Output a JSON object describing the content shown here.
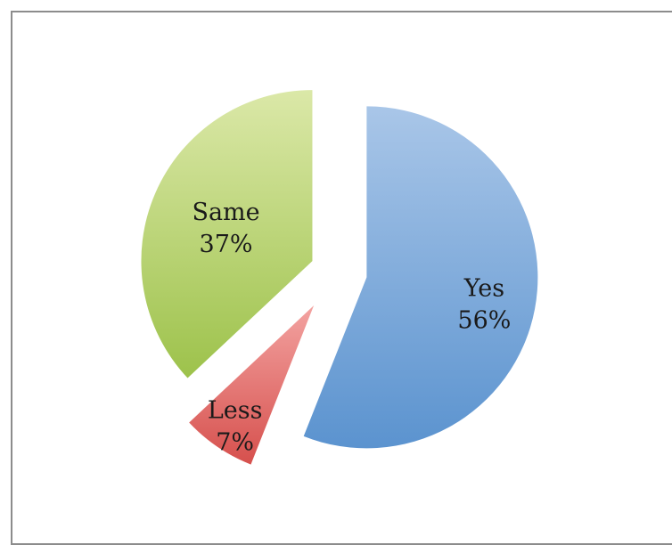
{
  "chart_data": {
    "type": "pie",
    "title": "",
    "categories": [
      "Yes",
      "Less",
      "Same"
    ],
    "values": [
      56,
      7,
      37
    ],
    "labels": [
      "56%",
      "7%",
      "37%"
    ],
    "colors": {
      "Yes": [
        "#a9c6e8",
        "#5b93cf"
      ],
      "Less": [
        "#f3a3a1",
        "#d6504d"
      ],
      "Same": [
        "#dbe8a8",
        "#9dc24b"
      ]
    },
    "legend": "none",
    "exploded": true
  }
}
